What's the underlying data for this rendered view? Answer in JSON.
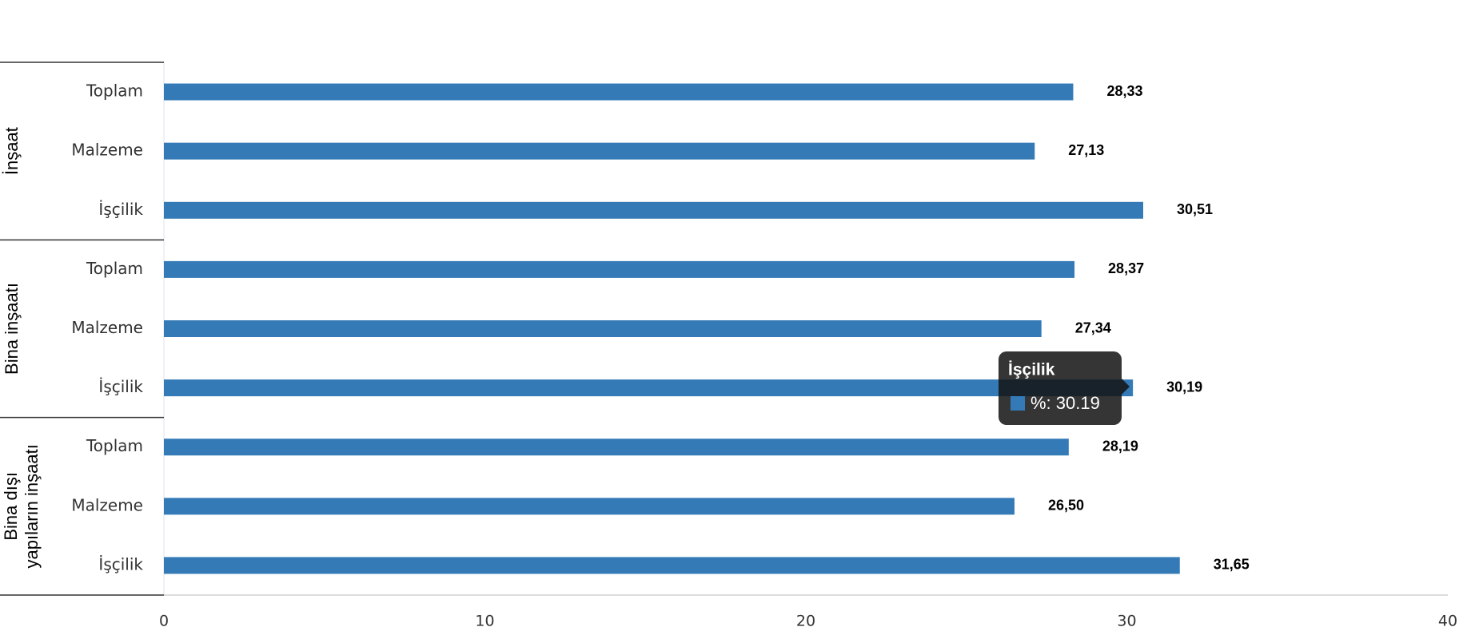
{
  "chart_data": {
    "type": "grouped-hbar",
    "series_name": "%",
    "color": "#337ab7",
    "xlim": [
      0,
      40
    ],
    "xticks": [
      0,
      10,
      20,
      30,
      40
    ],
    "groups": [
      {
        "lines": [
          "İnşaat"
        ],
        "categories": [
          "Toplam",
          "Malzeme",
          "İşçilik"
        ],
        "values": [
          28.33,
          27.13,
          30.51
        ],
        "value_labels": [
          "28,33",
          "27,13",
          "30,51"
        ]
      },
      {
        "lines": [
          "Bina inşaatı"
        ],
        "categories": [
          "Toplam",
          "Malzeme",
          "İşçilik"
        ],
        "values": [
          28.37,
          27.34,
          30.19
        ],
        "value_labels": [
          "28,37",
          "27,34",
          "30,19"
        ]
      },
      {
        "lines": [
          "Bina dışı",
          "yapıların inşaatı"
        ],
        "categories": [
          "Toplam",
          "Malzeme",
          "İşçilik"
        ],
        "values": [
          28.19,
          26.5,
          31.65
        ],
        "value_labels": [
          "28,19",
          "26,50",
          "31,65"
        ]
      }
    ],
    "tooltip": {
      "title": "İşçilik",
      "label": "%: 30.19"
    }
  }
}
